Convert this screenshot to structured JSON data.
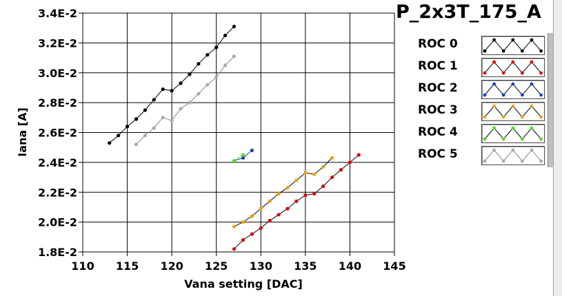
{
  "chart_data": {
    "type": "line",
    "title": "P_2x3T_175_A",
    "xlabel": "Vana setting [DAC]",
    "ylabel": "Iana [A]",
    "xlim": [
      110,
      145
    ],
    "ylim": [
      0.018,
      0.034
    ],
    "xticks": [
      110,
      115,
      120,
      125,
      130,
      135,
      140,
      145
    ],
    "xtick_labels": [
      "110",
      "115",
      "120",
      "125",
      "130",
      "135",
      "140",
      "145"
    ],
    "yticks": [
      0.018,
      0.02,
      0.022,
      0.024,
      0.026,
      0.028,
      0.03,
      0.032,
      0.034
    ],
    "ytick_labels": [
      "1.8E-2",
      "2.0E-2",
      "2.2E-2",
      "2.4E-2",
      "2.6E-2",
      "2.8E-2",
      "3.0E-2",
      "3.2E-2",
      "3.4E-2"
    ],
    "grid": true,
    "legend_position": "right",
    "series": [
      {
        "name": "ROC 0",
        "color": "#000000",
        "x": [
          113,
          114,
          115,
          116,
          117,
          118,
          119,
          120,
          121,
          122,
          123,
          124,
          125,
          126,
          127
        ],
        "y": [
          0.0253,
          0.0258,
          0.0264,
          0.0269,
          0.0275,
          0.0282,
          0.0289,
          0.0288,
          0.0293,
          0.0299,
          0.0306,
          0.0312,
          0.0317,
          0.0325,
          0.0331
        ]
      },
      {
        "name": "ROC 1",
        "color": "#e00000",
        "x": [
          127,
          128,
          129,
          130,
          131,
          132,
          133,
          134,
          135,
          136,
          137,
          138,
          139,
          140,
          141
        ],
        "y": [
          0.0182,
          0.0188,
          0.0192,
          0.0196,
          0.0201,
          0.0205,
          0.0209,
          0.0214,
          0.0218,
          0.0219,
          0.0224,
          0.023,
          0.0235,
          0.024,
          0.0245
        ]
      },
      {
        "name": "ROC 2",
        "color": "#1a3fbf",
        "x": [
          127,
          128,
          129
        ],
        "y": [
          0.0241,
          0.0243,
          0.0248
        ]
      },
      {
        "name": "ROC 3",
        "color": "#f0a000",
        "x": [
          127,
          128,
          129,
          130,
          131,
          132,
          133,
          134,
          135,
          136,
          137,
          138
        ],
        "y": [
          0.0197,
          0.02,
          0.0204,
          0.0209,
          0.0214,
          0.0219,
          0.0223,
          0.0228,
          0.0233,
          0.0232,
          0.0237,
          0.0243
        ]
      },
      {
        "name": "ROC 4",
        "color": "#55dd22",
        "x": [
          127,
          128
        ],
        "y": [
          0.0241,
          0.0245
        ]
      },
      {
        "name": "ROC 5",
        "color": "#aaaaaa",
        "x": [
          116,
          117,
          118,
          119,
          120,
          121,
          122,
          123,
          124,
          125,
          126,
          127
        ],
        "y": [
          0.0252,
          0.0258,
          0.0263,
          0.027,
          0.0268,
          0.0276,
          0.028,
          0.0286,
          0.0292,
          0.0297,
          0.0305,
          0.0311
        ]
      }
    ]
  }
}
